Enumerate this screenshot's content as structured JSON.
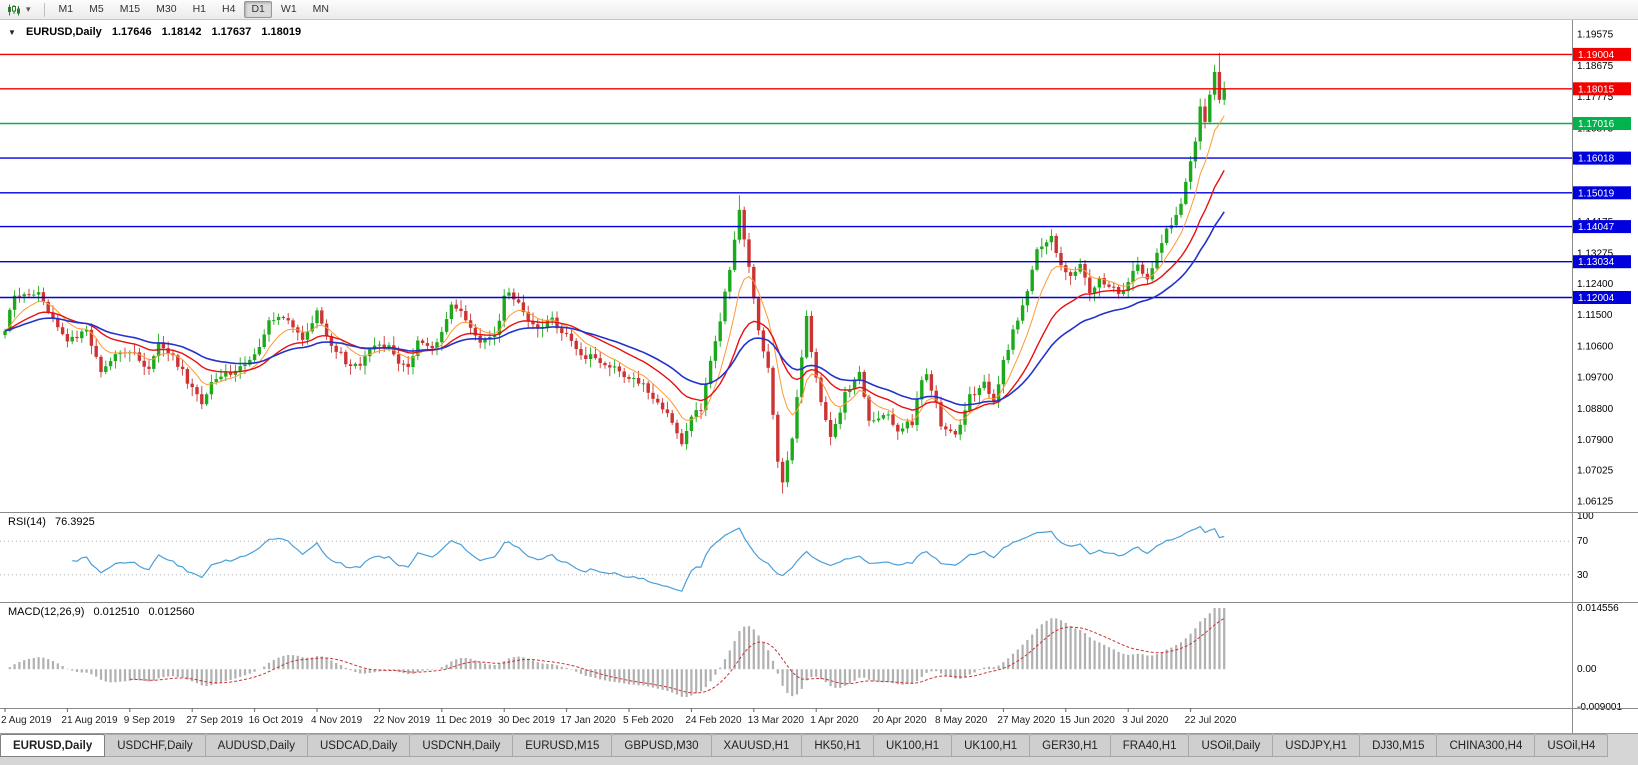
{
  "toolbar": {
    "timeframes": [
      "M1",
      "M5",
      "M15",
      "M30",
      "H1",
      "H4",
      "D1",
      "W1",
      "MN"
    ],
    "active_timeframe": "D1"
  },
  "chart": {
    "title": "EURUSD,Daily",
    "ohlc": {
      "open": "1.17646",
      "high": "1.18142",
      "low": "1.17637",
      "close": "1.18019"
    },
    "price_axis_labels": [
      "1.19575",
      "1.18675",
      "1.17775",
      "1.16875",
      "1.15975",
      "1.15075",
      "1.14175",
      "1.13275",
      "1.12400",
      "1.11500",
      "1.10600",
      "1.09700",
      "1.08800",
      "1.07900",
      "1.07025",
      "1.06125"
    ],
    "hlines": [
      {
        "price": 1.19004,
        "label": "1.19004",
        "color": "#f20000"
      },
      {
        "price": 1.18015,
        "label": "1.18015",
        "color": "#f20000"
      },
      {
        "price": 1.17016,
        "label": "1.17016",
        "color": "#00b44b"
      },
      {
        "price": 1.16018,
        "label": "1.16018",
        "color": "#0000de"
      },
      {
        "price": 1.15019,
        "label": "1.15019",
        "color": "#0000de"
      },
      {
        "price": 1.14047,
        "label": "1.14047",
        "color": "#0000de"
      },
      {
        "price": 1.13034,
        "label": "1.13034",
        "color": "#0000de"
      },
      {
        "price": 1.12004,
        "label": "1.12004",
        "color": "#0000de"
      }
    ],
    "date_labels": [
      "2 Aug 2019",
      "21 Aug 2019",
      "9 Sep 2019",
      "27 Sep 2019",
      "16 Oct 2019",
      "4 Nov 2019",
      "22 Nov 2019",
      "11 Dec 2019",
      "30 Dec 2019",
      "17 Jan 2020",
      "5 Feb 2020",
      "24 Feb 2020",
      "13 Mar 2020",
      "1 Apr 2020",
      "20 Apr 2020",
      "8 May 2020",
      "27 May 2020",
      "15 Jun 2020",
      "3 Jul 2020",
      "22 Jul 2020"
    ]
  },
  "rsi": {
    "label": "RSI(14)",
    "value": "76.3925",
    "axis_labels": [
      "100",
      "70",
      "30"
    ],
    "levels": [
      70,
      30
    ]
  },
  "macd": {
    "label": "MACD(12,26,9)",
    "value_main": "0.012510",
    "value_signal": "0.012560",
    "axis_labels": [
      "0.014556",
      "0.00",
      "-0.009001"
    ]
  },
  "tabs": {
    "active_index": 0,
    "items": [
      "EURUSD,Daily",
      "USDCHF,Daily",
      "AUDUSD,Daily",
      "USDCAD,Daily",
      "USDCNH,Daily",
      "EURUSD,M15",
      "GBPUSD,M30",
      "XAUUSD,H1",
      "HK50,H1",
      "UK100,H1",
      "UK100,H1",
      "GER30,H1",
      "FRA40,H1",
      "USOil,Daily",
      "USDJPY,H1",
      "DJ30,M15",
      "CHINA300,H4",
      "USOil,H4"
    ]
  },
  "chart_data": {
    "type": "candlestick",
    "symbol": "EURUSD",
    "period": "Daily",
    "days": 255,
    "price_range": {
      "top": 1.1965,
      "bottom": 1.06
    },
    "close_path_anchors": [
      [
        0,
        1.111
      ],
      [
        2,
        1.1205
      ],
      [
        7,
        1.1215
      ],
      [
        10,
        1.114
      ],
      [
        13,
        1.1078
      ],
      [
        17,
        1.1098
      ],
      [
        20,
        1.0985
      ],
      [
        23,
        1.1035
      ],
      [
        26,
        1.1045
      ],
      [
        30,
        1.1
      ],
      [
        32,
        1.107
      ],
      [
        36,
        1.101
      ],
      [
        39,
        1.0938
      ],
      [
        41,
        1.0895
      ],
      [
        44,
        1.0975
      ],
      [
        48,
        1.0985
      ],
      [
        52,
        1.1035
      ],
      [
        55,
        1.1125
      ],
      [
        58,
        1.115
      ],
      [
        62,
        1.1085
      ],
      [
        65,
        1.1155
      ],
      [
        68,
        1.1068
      ],
      [
        71,
        1.1018
      ],
      [
        74,
        1.1
      ],
      [
        77,
        1.1068
      ],
      [
        80,
        1.106
      ],
      [
        82,
        1.101
      ],
      [
        84,
        1.1
      ],
      [
        86,
        1.108
      ],
      [
        89,
        1.1058
      ],
      [
        91,
        1.1095
      ],
      [
        93,
        1.1178
      ],
      [
        96,
        1.114
      ],
      [
        99,
        1.1078
      ],
      [
        102,
        1.1088
      ],
      [
        104,
        1.1198
      ],
      [
        105,
        1.1212
      ],
      [
        108,
        1.116
      ],
      [
        111,
        1.1105
      ],
      [
        114,
        1.1135
      ],
      [
        117,
        1.1092
      ],
      [
        120,
        1.1038
      ],
      [
        123,
        1.1022
      ],
      [
        126,
        1.1
      ],
      [
        130,
        1.0975
      ],
      [
        133,
        1.0945
      ],
      [
        136,
        1.0905
      ],
      [
        139,
        1.0838
      ],
      [
        141,
        1.0785
      ],
      [
        143,
        1.0855
      ],
      [
        145,
        1.088
      ],
      [
        147,
        1.1027
      ],
      [
        149,
        1.1135
      ],
      [
        151,
        1.1285
      ],
      [
        153,
        1.145
      ],
      [
        155,
        1.128
      ],
      [
        157,
        1.111
      ],
      [
        159,
        1.0995
      ],
      [
        161,
        1.072
      ],
      [
        162,
        1.066
      ],
      [
        164,
        1.079
      ],
      [
        166,
        1.103
      ],
      [
        167,
        1.114
      ],
      [
        169,
        1.0963
      ],
      [
        172,
        1.0795
      ],
      [
        175,
        1.092
      ],
      [
        178,
        1.098
      ],
      [
        180,
        1.084
      ],
      [
        183,
        1.087
      ],
      [
        186,
        1.0823
      ],
      [
        189,
        1.084
      ],
      [
        191,
        1.0955
      ],
      [
        192,
        1.0978
      ],
      [
        194,
        1.0905
      ],
      [
        195,
        1.0838
      ],
      [
        198,
        1.0805
      ],
      [
        201,
        1.0915
      ],
      [
        204,
        1.095
      ],
      [
        206,
        1.0898
      ],
      [
        208,
        1.1015
      ],
      [
        210,
        1.11
      ],
      [
        212,
        1.117
      ],
      [
        215,
        1.134
      ],
      [
        218,
        1.1375
      ],
      [
        220,
        1.1295
      ],
      [
        222,
        1.1255
      ],
      [
        224,
        1.13
      ],
      [
        226,
        1.1215
      ],
      [
        228,
        1.1255
      ],
      [
        230,
        1.124
      ],
      [
        232,
        1.1205
      ],
      [
        234,
        1.125
      ],
      [
        236,
        1.1302
      ],
      [
        238,
        1.1255
      ],
      [
        240,
        1.133
      ],
      [
        242,
        1.14
      ],
      [
        244,
        1.1435
      ],
      [
        246,
        1.1525
      ],
      [
        247,
        1.159
      ],
      [
        248,
        1.1655
      ],
      [
        249,
        1.1752
      ],
      [
        250,
        1.1715
      ],
      [
        251,
        1.179
      ],
      [
        252,
        1.1845
      ],
      [
        253,
        1.1778
      ],
      [
        254,
        1.1802
      ]
    ],
    "spikes": {
      "high": [
        [
          153,
          1.1495
        ],
        [
          253,
          1.1905
        ]
      ],
      "low": [
        [
          41,
          1.0879
        ],
        [
          141,
          1.0778
        ],
        [
          162,
          1.0636
        ]
      ]
    },
    "moving_averages": [
      {
        "name": "ma-fast",
        "period": 8,
        "color": "#ff9933",
        "width": 1
      },
      {
        "name": "ma-medium",
        "period": 20,
        "color": "#e81010",
        "width": 1.4
      },
      {
        "name": "ma-slow",
        "period": 35,
        "color": "#2233cc",
        "width": 1.6
      }
    ],
    "indicators": {
      "rsi_period": 14,
      "macd": [
        12,
        26,
        9
      ]
    },
    "colors": {
      "bull": "#1caa1c",
      "bear": "#cc3333",
      "rsi": "#4a9fd8",
      "macd_hist": "#b0b0b0",
      "macd_signal": "#cc3333"
    }
  }
}
